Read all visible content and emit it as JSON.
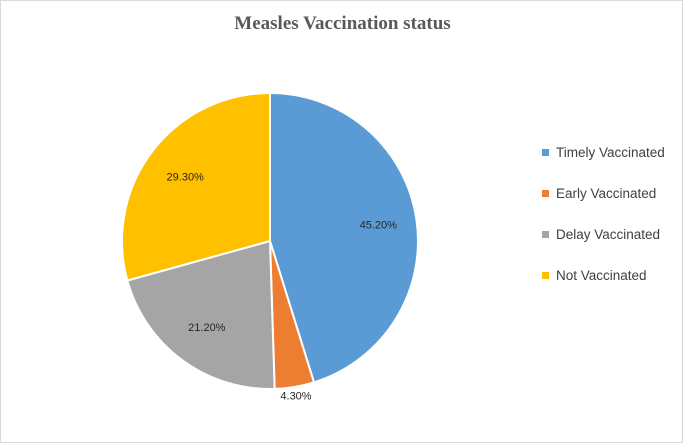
{
  "chart_data": {
    "type": "pie",
    "title": "Measles Vaccination status",
    "categories": [
      "Timely Vaccinated",
      "Early Vaccinated",
      "Delay Vaccinated",
      "Not Vaccinated"
    ],
    "values": [
      45.2,
      4.3,
      21.2,
      29.3
    ],
    "data_labels": [
      "45.20%",
      "4.30%",
      "21.20%",
      "29.30%"
    ],
    "colors": [
      "#5b9bd5",
      "#ed7d31",
      "#a5a5a5",
      "#ffc000"
    ],
    "legend_position": "right"
  }
}
